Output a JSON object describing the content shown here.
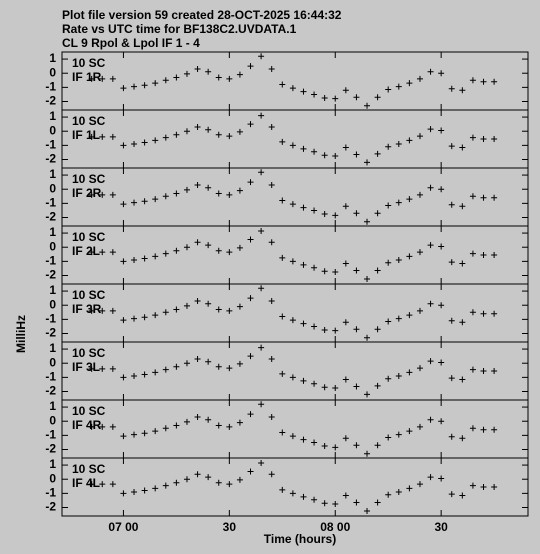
{
  "chart_data": {
    "type": "scatter",
    "title_lines": [
      "Plot file version 59  created 28-OCT-2025 16:44:32",
      "Rate vs UTC time for BF138C2.UVDATA.1",
      "CL 9  Rpol & Lpol  IF 1 - 4"
    ],
    "ylabel": "MilliHz",
    "xlabel": "Time (hours)",
    "xlim": [
      6.71,
      8.91
    ],
    "xticks": [
      {
        "value": 7,
        "label": "07 00"
      },
      {
        "value": 7.5,
        "label": "30"
      },
      {
        "value": 8,
        "label": "08 00"
      },
      {
        "value": 8.5,
        "label": "30"
      }
    ],
    "ylim": [
      -2.6,
      1.5
    ],
    "yticks": [
      1,
      0,
      -1,
      -2
    ],
    "x": [
      6.85,
      6.9,
      6.95,
      7.0,
      7.05,
      7.1,
      7.15,
      7.2,
      7.25,
      7.3,
      7.35,
      7.4,
      7.45,
      7.5,
      7.55,
      7.6,
      7.65,
      7.7,
      7.75,
      7.8,
      7.85,
      7.9,
      7.95,
      8.0,
      8.05,
      8.1,
      8.15,
      8.2,
      8.25,
      8.3,
      8.35,
      8.4,
      8.45,
      8.5,
      8.55,
      8.6,
      8.65,
      8.7,
      8.75
    ],
    "panels": [
      {
        "labels": [
          "10 SC",
          "IF 1R"
        ],
        "values": [
          -0.4,
          -0.4,
          -0.4,
          -1.05,
          -0.95,
          -0.85,
          -0.7,
          -0.5,
          -0.3,
          -0.05,
          0.3,
          0.1,
          -0.3,
          -0.4,
          -0.1,
          0.5,
          1.2,
          0.3,
          -0.8,
          -1.05,
          -1.3,
          -1.5,
          -1.75,
          -1.8,
          -1.2,
          -1.7,
          -2.3,
          -1.7,
          -1.15,
          -0.95,
          -0.7,
          -0.4,
          0.1,
          0.0,
          -1.1,
          -1.2,
          -0.5,
          -0.6,
          -0.6
        ]
      },
      {
        "labels": [
          "10 SC",
          "IF 1L"
        ],
        "values": [
          -0.4,
          -0.4,
          -0.4,
          -1.0,
          -0.9,
          -0.8,
          -0.65,
          -0.45,
          -0.25,
          0.0,
          0.3,
          0.1,
          -0.25,
          -0.35,
          -0.05,
          0.5,
          1.1,
          0.3,
          -0.75,
          -1.0,
          -1.25,
          -1.45,
          -1.7,
          -1.75,
          -1.15,
          -1.65,
          -2.2,
          -1.6,
          -1.1,
          -0.9,
          -0.65,
          -0.35,
          0.15,
          0.05,
          -1.05,
          -1.15,
          -0.45,
          -0.55,
          -0.55
        ]
      },
      {
        "labels": [
          "10 SC",
          "IF 2R"
        ],
        "values": [
          -0.4,
          -0.4,
          -0.4,
          -1.05,
          -0.95,
          -0.85,
          -0.7,
          -0.5,
          -0.3,
          -0.05,
          0.3,
          0.1,
          -0.3,
          -0.4,
          -0.1,
          0.5,
          1.2,
          0.3,
          -0.8,
          -1.05,
          -1.3,
          -1.5,
          -1.75,
          -1.85,
          -1.2,
          -1.7,
          -2.3,
          -1.7,
          -1.15,
          -0.95,
          -0.7,
          -0.4,
          0.1,
          0.0,
          -1.1,
          -1.2,
          -0.5,
          -0.6,
          -0.6
        ]
      },
      {
        "labels": [
          "10 SC",
          "IF 2L"
        ],
        "values": [
          -0.35,
          -0.35,
          -0.35,
          -1.0,
          -0.9,
          -0.8,
          -0.65,
          -0.45,
          -0.25,
          0.0,
          0.35,
          0.15,
          -0.25,
          -0.35,
          -0.05,
          0.55,
          1.15,
          0.35,
          -0.75,
          -1.0,
          -1.25,
          -1.45,
          -1.7,
          -1.75,
          -1.15,
          -1.65,
          -2.25,
          -1.65,
          -1.1,
          -0.9,
          -0.65,
          -0.35,
          0.15,
          0.05,
          -1.05,
          -1.15,
          -0.45,
          -0.55,
          -0.55
        ]
      },
      {
        "labels": [
          "10 SC",
          "IF 3R"
        ],
        "values": [
          -0.4,
          -0.4,
          -0.4,
          -1.05,
          -0.95,
          -0.85,
          -0.7,
          -0.5,
          -0.3,
          -0.05,
          0.3,
          0.1,
          -0.3,
          -0.4,
          -0.1,
          0.5,
          1.2,
          0.3,
          -0.8,
          -1.05,
          -1.3,
          -1.5,
          -1.75,
          -1.8,
          -1.2,
          -1.7,
          -2.3,
          -1.7,
          -1.15,
          -0.95,
          -0.7,
          -0.4,
          0.1,
          0.0,
          -1.1,
          -1.2,
          -0.5,
          -0.6,
          -0.6
        ]
      },
      {
        "labels": [
          "10 SC",
          "IF 3L"
        ],
        "values": [
          -0.4,
          -0.4,
          -0.4,
          -1.0,
          -0.9,
          -0.8,
          -0.65,
          -0.45,
          -0.25,
          0.0,
          0.3,
          0.1,
          -0.25,
          -0.35,
          -0.05,
          0.5,
          1.1,
          0.3,
          -0.75,
          -1.0,
          -1.25,
          -1.45,
          -1.7,
          -1.75,
          -1.15,
          -1.65,
          -2.2,
          -1.6,
          -1.1,
          -0.9,
          -0.65,
          -0.35,
          0.15,
          0.05,
          -1.05,
          -1.15,
          -0.45,
          -0.55,
          -0.55
        ]
      },
      {
        "labels": [
          "10 SC",
          "IF 4R"
        ],
        "values": [
          -0.4,
          -0.4,
          -0.4,
          -1.05,
          -0.95,
          -0.85,
          -0.7,
          -0.5,
          -0.3,
          -0.05,
          0.3,
          0.1,
          -0.3,
          -0.4,
          -0.1,
          0.5,
          1.2,
          0.3,
          -0.8,
          -1.05,
          -1.3,
          -1.5,
          -1.75,
          -1.85,
          -1.2,
          -1.7,
          -2.3,
          -1.7,
          -1.15,
          -0.95,
          -0.7,
          -0.4,
          0.1,
          0.0,
          -1.1,
          -1.2,
          -0.5,
          -0.6,
          -0.6
        ]
      },
      {
        "labels": [
          "10 SC",
          "IF 4L"
        ],
        "values": [
          -0.35,
          -0.35,
          -0.35,
          -1.0,
          -0.9,
          -0.8,
          -0.65,
          -0.45,
          -0.25,
          0.0,
          0.35,
          0.15,
          -0.25,
          -0.35,
          -0.05,
          0.55,
          1.15,
          0.35,
          -0.75,
          -1.0,
          -1.25,
          -1.45,
          -1.7,
          -1.75,
          -1.15,
          -1.65,
          -2.25,
          -1.65,
          -1.1,
          -0.9,
          -0.65,
          -0.35,
          0.15,
          0.05,
          -1.05,
          -1.15,
          -0.45,
          -0.55,
          -0.55
        ]
      }
    ]
  }
}
